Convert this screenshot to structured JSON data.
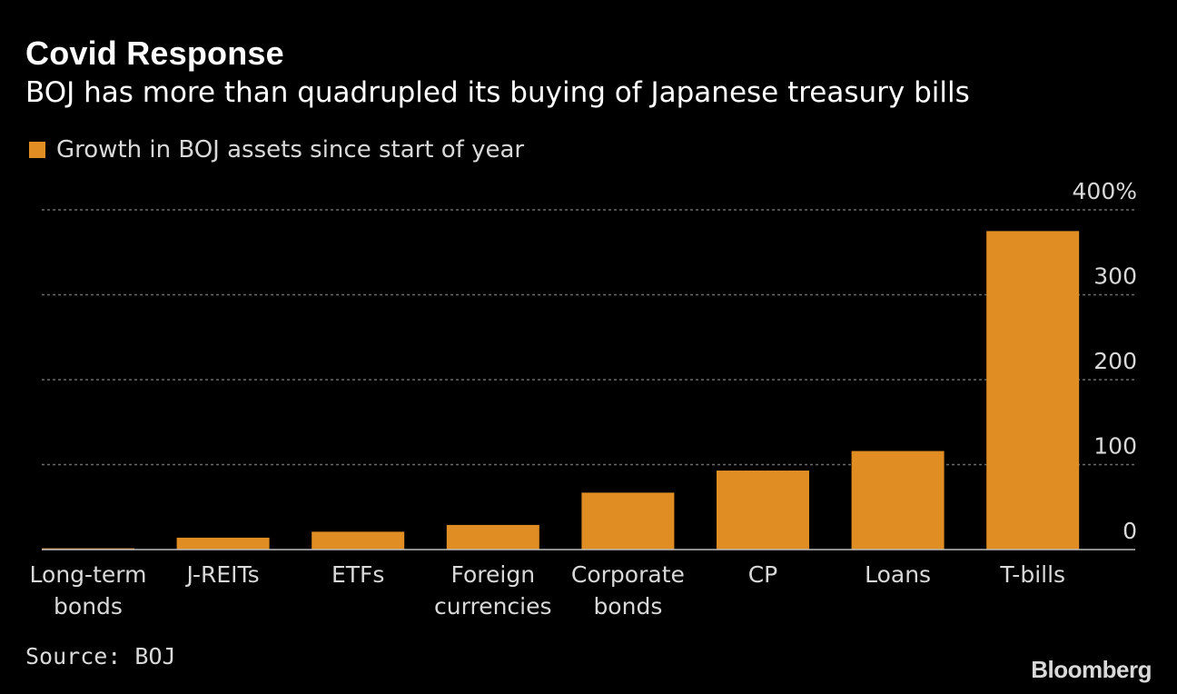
{
  "header": {
    "title": "Covid Response",
    "subtitle": "BOJ has more than quadrupled its buying of Japanese treasury bills"
  },
  "legend": {
    "label": "Growth in BOJ assets since start of year"
  },
  "colors": {
    "bar": "#e08e24",
    "background": "#000000",
    "grid": "#6b6b6b",
    "axis": "#bdbdbd"
  },
  "footer": {
    "source": "Source: BOJ",
    "brand": "Bloomberg"
  },
  "chart_data": {
    "type": "bar",
    "categories": [
      [
        "Long-term",
        "bonds"
      ],
      [
        "J-REITs"
      ],
      [
        "ETFs"
      ],
      [
        "Foreign",
        "currencies"
      ],
      [
        "Corporate",
        "bonds"
      ],
      [
        "CP"
      ],
      [
        "Loans"
      ],
      [
        "T-bills"
      ]
    ],
    "series": [
      {
        "name": "Growth in BOJ assets since start of year",
        "values": [
          1.5,
          14,
          21,
          29,
          67,
          93,
          116,
          375
        ]
      }
    ],
    "ylim": [
      0,
      400
    ],
    "yticks": [
      0,
      100,
      200,
      300,
      400
    ],
    "ytick_labels": [
      "0",
      "100",
      "200",
      "300",
      "400%"
    ],
    "grid": true,
    "legend_position": "top-left",
    "y_axis_position": "right"
  }
}
